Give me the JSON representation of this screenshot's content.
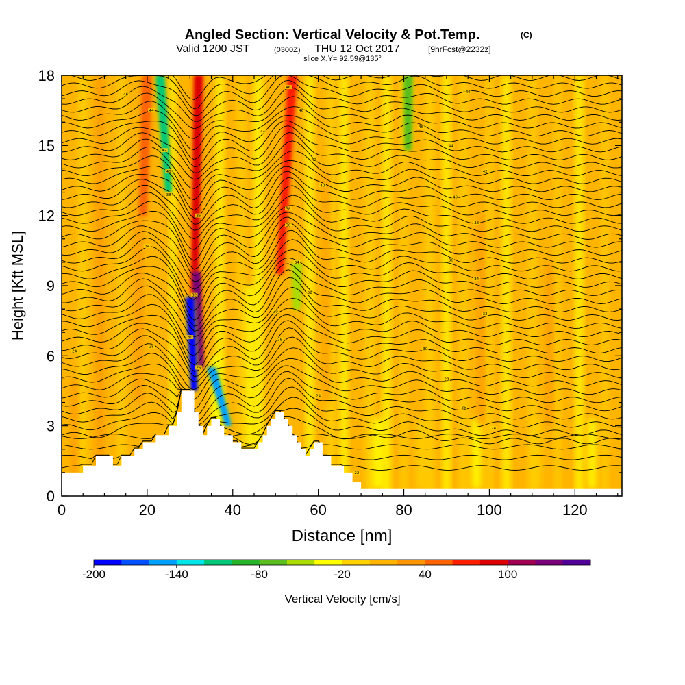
{
  "header": {
    "title": "Angled Section: Vertical Velocity & Pot.Temp.",
    "title_unit": "(C)",
    "valid_prefix": "Valid 1200 JST",
    "valid_zulu": "(0300Z)",
    "valid_date": "THU 12 Oct 2017",
    "forecast": "[9hrFcst@2232z]",
    "slice_info": "slice X,Y= 92,59@135°"
  },
  "chart_data": {
    "type": "heatmap",
    "xlabel": "Distance [nm]",
    "ylabel": "Height [Kft MSL]",
    "xlim": [
      0,
      131
    ],
    "ylim": [
      0,
      18
    ],
    "x_ticks": [
      0,
      20,
      40,
      60,
      80,
      100,
      120
    ],
    "y_ticks": [
      0,
      3,
      6,
      9,
      12,
      15,
      18
    ],
    "terrain_profile": [
      [
        0,
        1.0
      ],
      [
        5,
        1.0
      ],
      [
        5,
        1.3
      ],
      [
        8,
        1.3
      ],
      [
        8,
        1.7
      ],
      [
        12,
        1.7
      ],
      [
        12,
        1.3
      ],
      [
        14,
        1.3
      ],
      [
        14,
        1.7
      ],
      [
        17,
        1.7
      ],
      [
        17,
        2.0
      ],
      [
        19,
        2.0
      ],
      [
        19,
        2.3
      ],
      [
        22,
        2.3
      ],
      [
        22,
        2.6
      ],
      [
        25,
        2.6
      ],
      [
        25,
        3.0
      ],
      [
        27,
        3.0
      ],
      [
        27,
        3.6
      ],
      [
        28,
        3.6
      ],
      [
        28,
        4.5
      ],
      [
        31,
        4.5
      ],
      [
        31,
        3.6
      ],
      [
        32,
        3.6
      ],
      [
        32,
        3.0
      ],
      [
        33,
        3.0
      ],
      [
        33,
        2.6
      ],
      [
        34,
        2.6
      ],
      [
        34,
        3.0
      ],
      [
        35,
        3.0
      ],
      [
        35,
        3.3
      ],
      [
        37,
        3.3
      ],
      [
        37,
        3.0
      ],
      [
        38,
        3.0
      ],
      [
        38,
        2.6
      ],
      [
        40,
        2.6
      ],
      [
        40,
        2.3
      ],
      [
        42,
        2.3
      ],
      [
        42,
        2.0
      ],
      [
        46,
        2.0
      ],
      [
        46,
        2.3
      ],
      [
        47,
        2.3
      ],
      [
        47,
        2.6
      ],
      [
        48,
        2.6
      ],
      [
        48,
        3.0
      ],
      [
        49,
        3.0
      ],
      [
        49,
        3.3
      ],
      [
        50,
        3.3
      ],
      [
        50,
        3.6
      ],
      [
        52,
        3.6
      ],
      [
        52,
        3.3
      ],
      [
        53,
        3.3
      ],
      [
        53,
        3.0
      ],
      [
        54,
        3.0
      ],
      [
        54,
        2.6
      ],
      [
        55,
        2.6
      ],
      [
        55,
        2.3
      ],
      [
        56,
        2.3
      ],
      [
        56,
        2.0
      ],
      [
        57,
        2.0
      ],
      [
        57,
        1.7
      ],
      [
        58,
        1.7
      ],
      [
        58,
        2.0
      ],
      [
        59,
        2.0
      ],
      [
        59,
        2.3
      ],
      [
        61,
        2.3
      ],
      [
        61,
        1.7
      ],
      [
        63,
        1.7
      ],
      [
        63,
        1.3
      ],
      [
        66,
        1.3
      ],
      [
        66,
        1.0
      ],
      [
        68,
        1.0
      ],
      [
        68,
        0.6
      ],
      [
        70,
        0.6
      ],
      [
        70,
        0.3
      ],
      [
        131,
        0.3
      ]
    ],
    "updraft_bands": [
      {
        "x_top": 32,
        "x_bottom": 31,
        "y_top": 18,
        "y_bottom": 8,
        "value": 90
      },
      {
        "x_top": 31.5,
        "x_bottom": 32.5,
        "y_top": 9.6,
        "y_bottom": 5.5,
        "value": 120
      },
      {
        "x_top": 54,
        "x_bottom": 51,
        "y_top": 18,
        "y_bottom": 9.5,
        "value": 60
      },
      {
        "x_top": 20,
        "x_bottom": 19,
        "y_top": 18,
        "y_bottom": 12,
        "value": 50
      }
    ],
    "downdraft_bands": [
      {
        "x_top": 23,
        "x_bottom": 25,
        "y_top": 18,
        "y_bottom": 13,
        "value": -110
      },
      {
        "x_top": 30,
        "x_bottom": 31,
        "y_top": 8.5,
        "y_bottom": 4.5,
        "value": -200
      },
      {
        "x_top": 35,
        "x_bottom": 39,
        "y_top": 5.5,
        "y_bottom": 3.0,
        "value": -150
      },
      {
        "x_top": 81,
        "x_bottom": 81,
        "y_top": 18,
        "y_bottom": 14.8,
        "value": -70
      },
      {
        "x_top": 55,
        "x_bottom": 55,
        "y_top": 10,
        "y_bottom": 8,
        "value": -50
      }
    ],
    "isentrope_labels": [
      {
        "x": 15,
        "y": 17.2,
        "text": "46"
      },
      {
        "x": 21,
        "y": 16.5,
        "text": "44"
      },
      {
        "x": 24,
        "y": 14.8,
        "text": "42"
      },
      {
        "x": 25,
        "y": 13.9,
        "text": "40"
      },
      {
        "x": 25,
        "y": 12.9,
        "text": "38"
      },
      {
        "x": 32,
        "y": 12.0,
        "text": "36"
      },
      {
        "x": 20,
        "y": 10.7,
        "text": "34"
      },
      {
        "x": 31,
        "y": 8.6,
        "text": "32"
      },
      {
        "x": 30,
        "y": 6.8,
        "text": "30"
      },
      {
        "x": 21,
        "y": 6.4,
        "text": "28"
      },
      {
        "x": 32,
        "y": 5.5,
        "text": "26"
      },
      {
        "x": 3,
        "y": 6.2,
        "text": "24"
      },
      {
        "x": 53,
        "y": 17.5,
        "text": "46"
      },
      {
        "x": 56,
        "y": 16.5,
        "text": "46"
      },
      {
        "x": 47,
        "y": 15.6,
        "text": "44"
      },
      {
        "x": 59,
        "y": 14.4,
        "text": "42"
      },
      {
        "x": 61,
        "y": 13.3,
        "text": "40"
      },
      {
        "x": 53,
        "y": 12.3,
        "text": "38"
      },
      {
        "x": 53,
        "y": 11.6,
        "text": "36"
      },
      {
        "x": 55,
        "y": 10.0,
        "text": "34"
      },
      {
        "x": 58,
        "y": 8.7,
        "text": "32"
      },
      {
        "x": 50,
        "y": 7.9,
        "text": "30"
      },
      {
        "x": 51,
        "y": 6.7,
        "text": "28"
      },
      {
        "x": 60,
        "y": 4.3,
        "text": "24"
      },
      {
        "x": 69,
        "y": 1.0,
        "text": "22"
      },
      {
        "x": 95,
        "y": 17.3,
        "text": "46"
      },
      {
        "x": 84,
        "y": 15.8,
        "text": "46"
      },
      {
        "x": 91,
        "y": 15.0,
        "text": "44"
      },
      {
        "x": 99,
        "y": 13.9,
        "text": "42"
      },
      {
        "x": 92,
        "y": 12.8,
        "text": "40"
      },
      {
        "x": 97,
        "y": 11.7,
        "text": "38"
      },
      {
        "x": 91,
        "y": 10.1,
        "text": "36"
      },
      {
        "x": 97,
        "y": 9.3,
        "text": "34"
      },
      {
        "x": 99,
        "y": 7.8,
        "text": "32"
      },
      {
        "x": 85,
        "y": 6.3,
        "text": "30"
      },
      {
        "x": 90,
        "y": 5.0,
        "text": "28"
      },
      {
        "x": 94,
        "y": 3.8,
        "text": "26"
      },
      {
        "x": 101,
        "y": 2.9,
        "text": "24"
      }
    ],
    "colorbar": {
      "label": "Vertical Velocity [cm/s]",
      "tick_labels": [
        "-200",
        "-140",
        "-80",
        "-20",
        "40",
        "100"
      ],
      "colors": [
        "#0000ff",
        "#0050ff",
        "#00a0ff",
        "#00e6e6",
        "#00c878",
        "#28b428",
        "#5abe1e",
        "#aadc00",
        "#ffff00",
        "#ffd200",
        "#ffb400",
        "#ff9600",
        "#ff6400",
        "#ff1e00",
        "#dc0000",
        "#a00050",
        "#780078",
        "#500096"
      ]
    },
    "field_colors": {
      "background": "#ffb400",
      "pale": "#ffd200",
      "light": "#ffff00",
      "orange": "#ff9600",
      "orange_deep": "#ff6400",
      "red": "#ff1e00",
      "deep_red": "#dc0000",
      "maroon": "#a00050",
      "green_light": "#aadc00",
      "green": "#28b428",
      "teal": "#00c878",
      "cyan": "#00e6e6",
      "blue": "#0050ff"
    }
  }
}
